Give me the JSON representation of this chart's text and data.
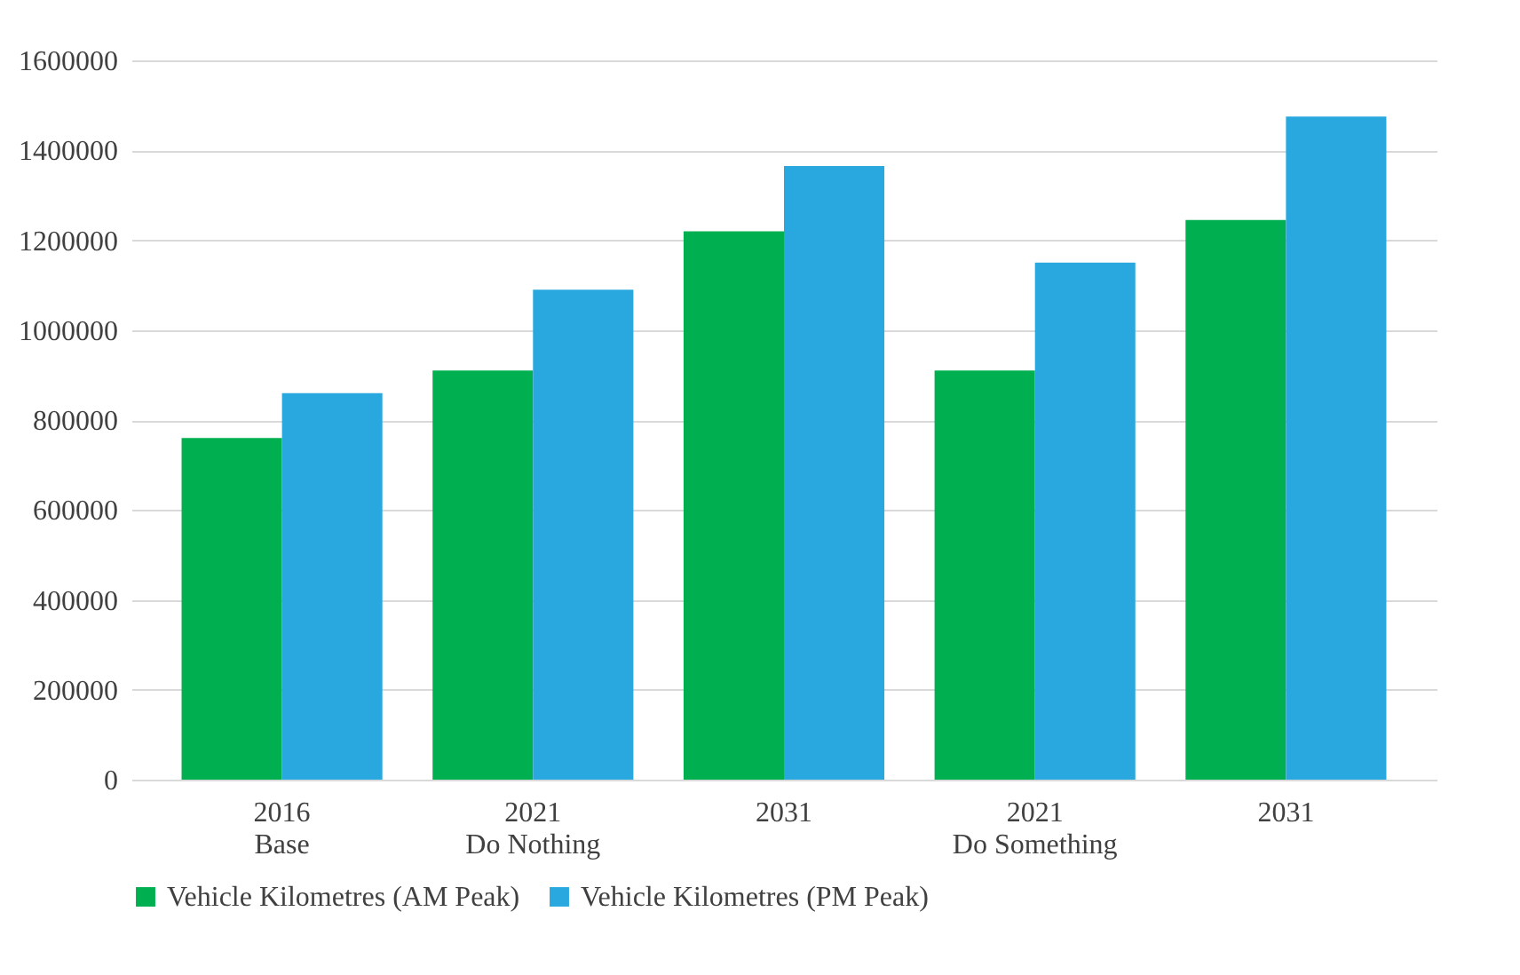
{
  "chart_data": {
    "type": "bar",
    "categories": [
      "2016\nBase",
      "2021\nDo Nothing",
      "2031",
      "2021\nDo Something",
      "2031"
    ],
    "series": [
      {
        "name": "Vehicle Kilometres (AM Peak)",
        "color": "#00b050",
        "values": [
          760000,
          910000,
          1220000,
          910000,
          1245000
        ]
      },
      {
        "name": "Vehicle Kilometres (PM Peak)",
        "color": "#29a8e0",
        "values": [
          860000,
          1090000,
          1365000,
          1150000,
          1475000
        ]
      }
    ],
    "ylim": [
      0,
      1600000
    ],
    "yticks": [
      0,
      200000,
      400000,
      600000,
      800000,
      1000000,
      1200000,
      1400000,
      1600000
    ],
    "grid": "y",
    "legend": "bottom"
  }
}
